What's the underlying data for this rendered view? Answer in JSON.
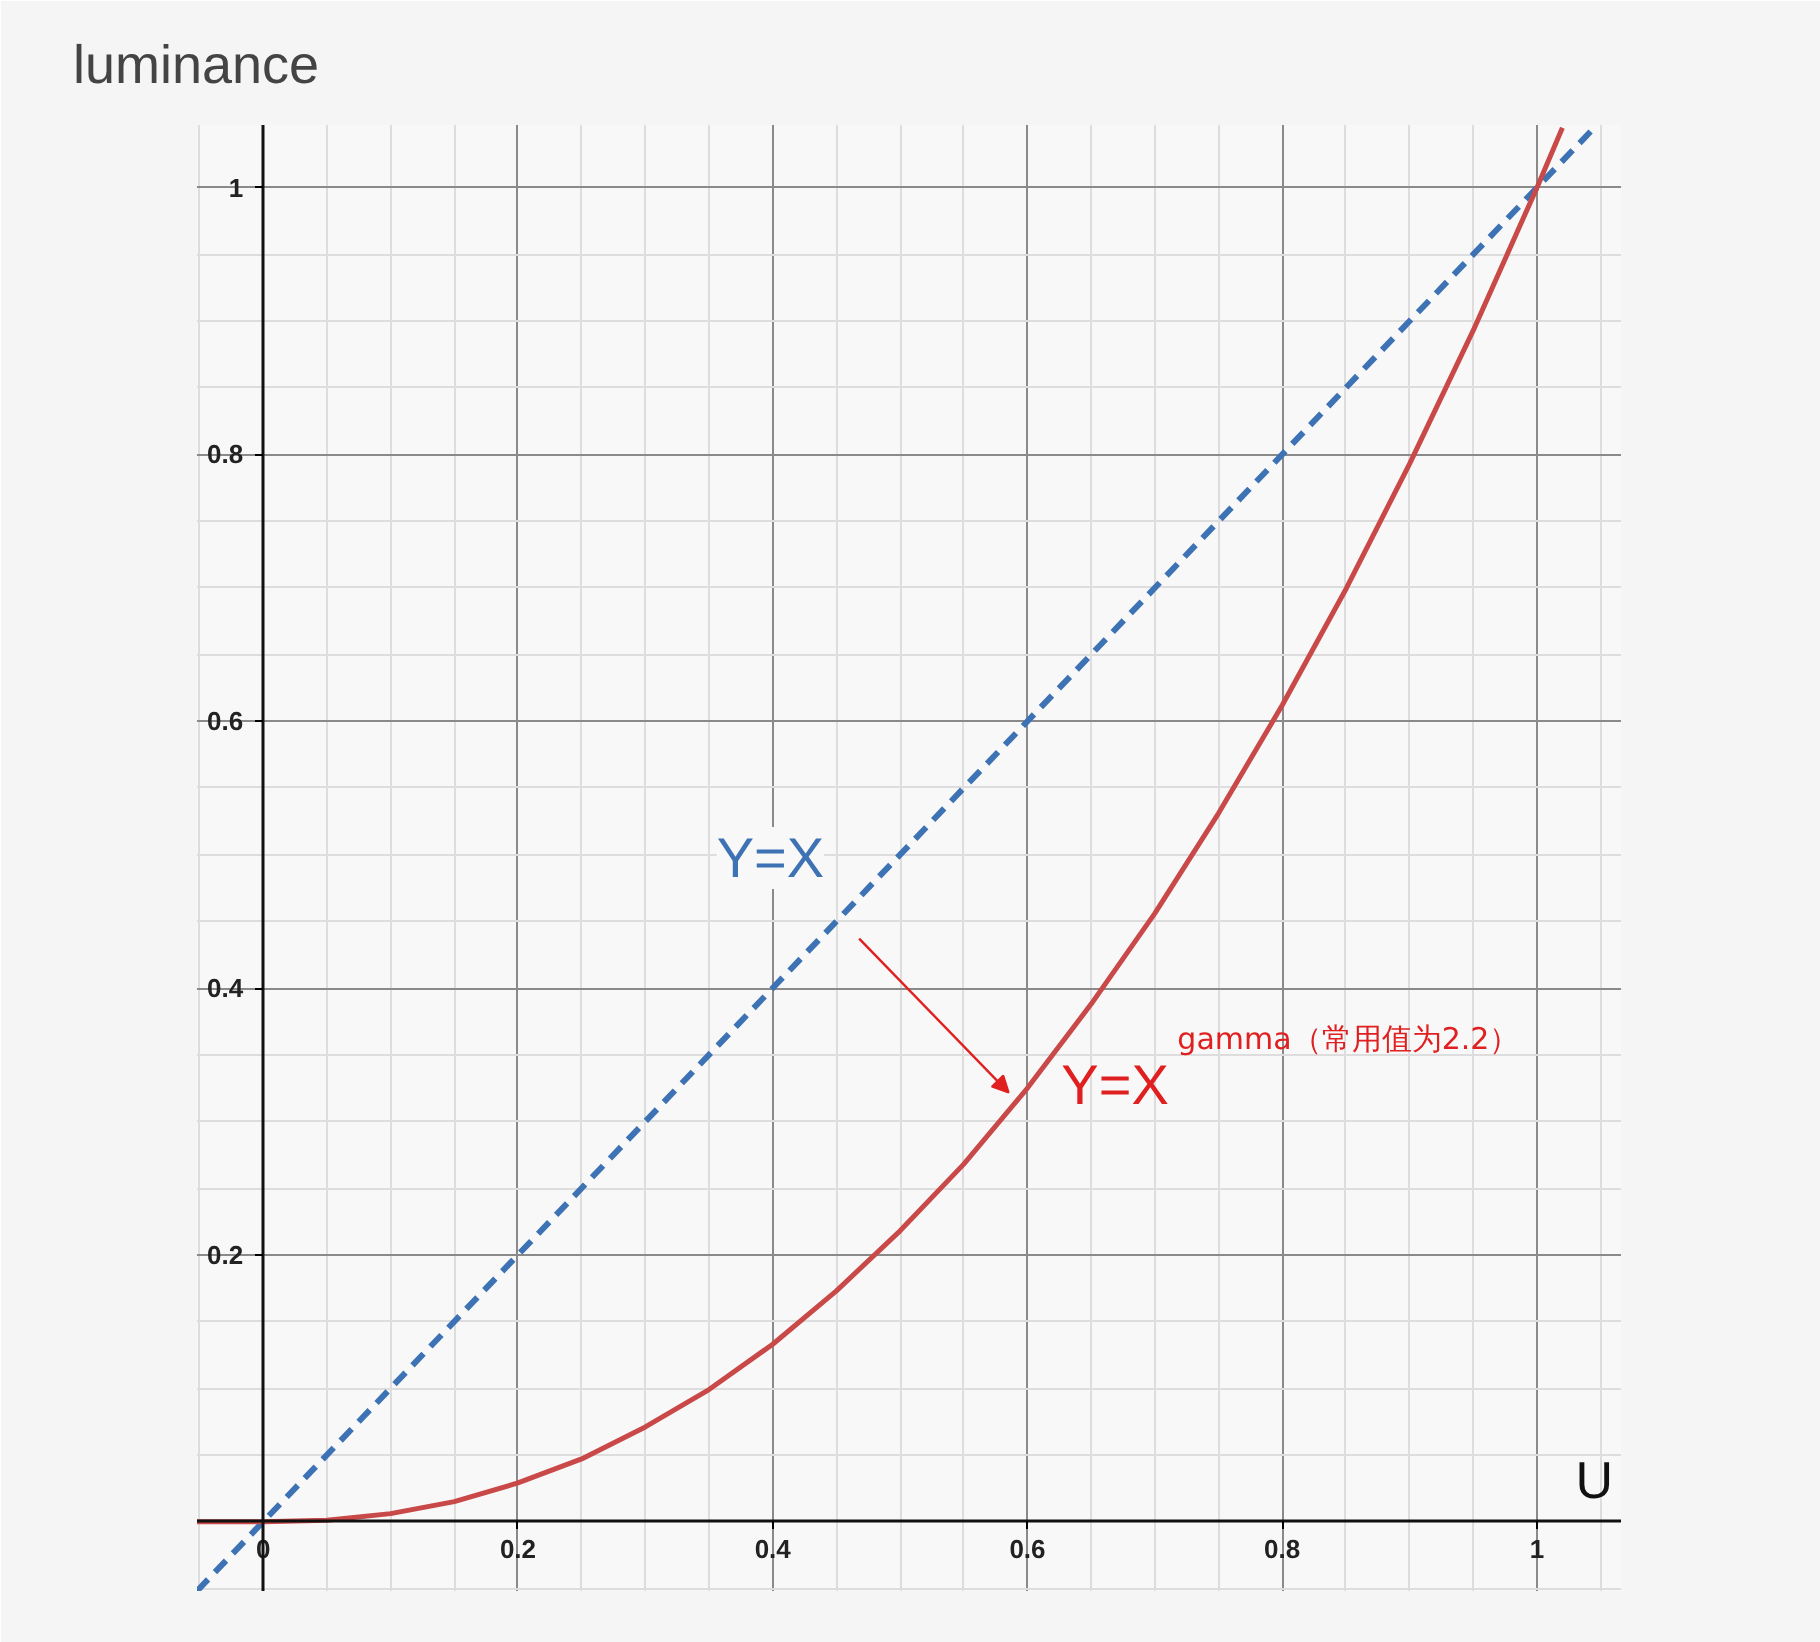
{
  "chart_data": {
    "type": "line",
    "title": "luminance",
    "xlabel": "U",
    "xlim": [
      -0.052,
      1.066
    ],
    "ylim": [
      -0.052,
      1.047
    ],
    "xticks": [
      0,
      0.2,
      0.4,
      0.6,
      0.8,
      1
    ],
    "yticks": [
      0.2,
      0.4,
      0.6,
      0.8,
      1
    ],
    "grid": true,
    "series": [
      {
        "color": "#3d72b4",
        "line_style": "dashed",
        "x": [
          -0.052,
          1.047
        ],
        "values": [
          -0.052,
          1.047
        ]
      },
      {
        "color": "#c94848",
        "line_style": "solid",
        "x": [
          -0.052,
          0,
          0.05,
          0.1,
          0.15,
          0.2,
          0.25,
          0.3,
          0.35,
          0.4,
          0.45,
          0.5,
          0.55,
          0.6,
          0.65,
          0.7,
          0.75,
          0.8,
          0.85,
          0.9,
          0.95,
          1,
          1.02
        ],
        "values": [
          0,
          0,
          0.001,
          0.006,
          0.015,
          0.029,
          0.047,
          0.071,
          0.099,
          0.133,
          0.173,
          0.218,
          0.268,
          0.325,
          0.388,
          0.456,
          0.531,
          0.612,
          0.699,
          0.793,
          0.893,
          1,
          1.045
        ]
      }
    ],
    "annotations": [
      "Y=X",
      "Y=X$^{gamma（常用值为2.2）}$"
    ]
  }
}
